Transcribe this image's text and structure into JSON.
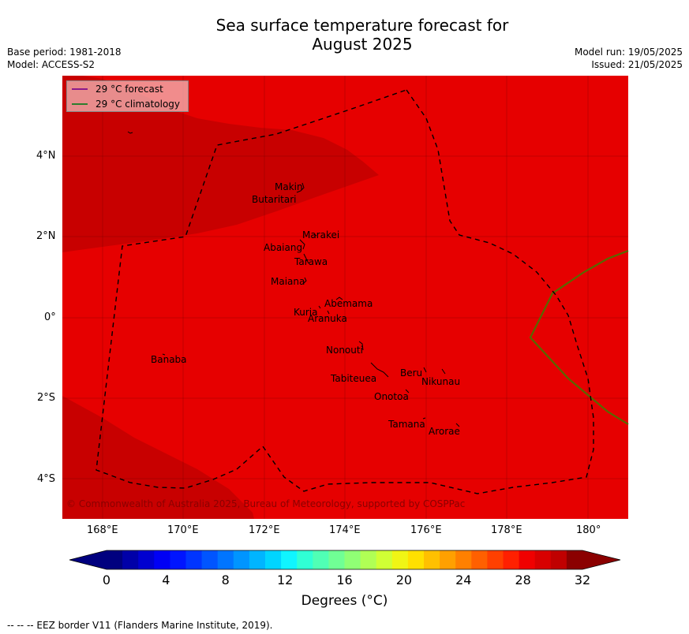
{
  "title_line1": "Sea surface temperature forecast for",
  "title_line2": "August 2025",
  "meta_left": {
    "base_period": "Base period: 1981-2018",
    "model": "Model: ACCESS-S2"
  },
  "meta_right": {
    "model_run": "Model run: 19/05/2025",
    "issued": "Issued: 21/05/2025"
  },
  "legend": {
    "forecast": {
      "label": "29 °C  forecast",
      "color": "#8b1a8b"
    },
    "climatology": {
      "label": "29 °C  climatology",
      "color": "#2e7d2e"
    }
  },
  "axes": {
    "y_ticks": [
      "4°N",
      "2°N",
      "0°",
      "2°S",
      "4°S"
    ],
    "x_ticks": [
      "168°E",
      "170°E",
      "172°E",
      "174°E",
      "176°E",
      "178°E",
      "180°"
    ]
  },
  "places": [
    "Makin",
    "Butaritari",
    "Marakei",
    "Abaiang",
    "Tarawa",
    "Maiana",
    "Abemama",
    "Kuria",
    "Aranuka",
    "Nonouti",
    "Banaba",
    "Tabiteuea",
    "Beru",
    "Nikunau",
    "Onotoa",
    "Tamana",
    "Arorae"
  ],
  "copyright": "© Commonwealth of Australia 2025, Bureau of Meteorology, supported by COSPPac",
  "colorbar": {
    "label": "Degrees (°C)",
    "ticks": [
      "0",
      "4",
      "8",
      "12",
      "16",
      "20",
      "24",
      "28",
      "32"
    ],
    "colors": [
      "#00007f",
      "#0000a8",
      "#0000d0",
      "#0000f5",
      "#0015ff",
      "#0035ff",
      "#0055ff",
      "#0075ff",
      "#0095ff",
      "#00b5ff",
      "#00d5ff",
      "#10f5ff",
      "#30ffd5",
      "#50ffb5",
      "#70ff95",
      "#90ff75",
      "#b0ff55",
      "#d0ff35",
      "#f0f515",
      "#ffe000",
      "#ffc000",
      "#ffa000",
      "#ff8000",
      "#ff6000",
      "#ff4000",
      "#ff2000",
      "#f00000",
      "#d80000",
      "#c00000",
      "#8b0000"
    ],
    "under_color": "#00007f",
    "over_color": "#8b0000"
  },
  "map_colors": {
    "warm": "#e60000",
    "warmer": "#c80000",
    "eez": "#000000",
    "clim_line": "#556b00"
  },
  "footer": "--  --  -- EEZ border V11 (Flanders Marine Institute, 2019)."
}
